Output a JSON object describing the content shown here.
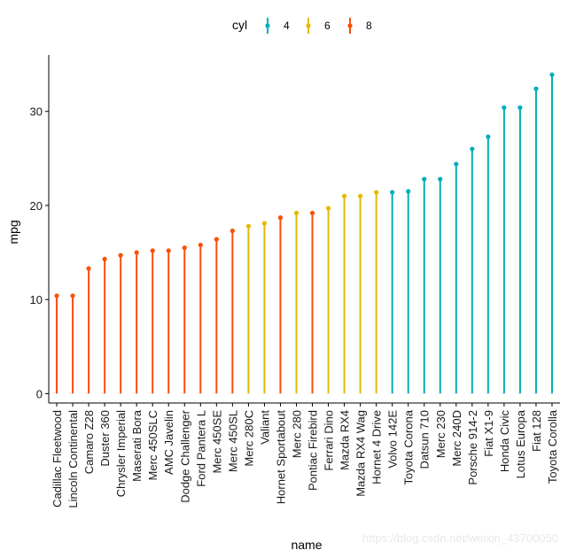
{
  "chart_data": {
    "type": "lollipop",
    "xlabel": "name",
    "ylabel": "mpg",
    "ylim": [
      -1,
      36
    ],
    "yticks": [
      0,
      10,
      20,
      30
    ],
    "legend": {
      "title": "cyl",
      "position": "top",
      "entries": [
        {
          "label": "4",
          "color": "#00AFBB"
        },
        {
          "label": "6",
          "color": "#E7B800"
        },
        {
          "label": "8",
          "color": "#FC4E07"
        }
      ]
    },
    "points": [
      {
        "name": "Cadillac Fleetwood",
        "mpg": 10.4,
        "cyl": "8"
      },
      {
        "name": "Lincoln Continental",
        "mpg": 10.4,
        "cyl": "8"
      },
      {
        "name": "Camaro Z28",
        "mpg": 13.3,
        "cyl": "8"
      },
      {
        "name": "Duster 360",
        "mpg": 14.3,
        "cyl": "8"
      },
      {
        "name": "Chrysler Imperial",
        "mpg": 14.7,
        "cyl": "8"
      },
      {
        "name": "Maserati Bora",
        "mpg": 15.0,
        "cyl": "8"
      },
      {
        "name": "Merc 450SLC",
        "mpg": 15.2,
        "cyl": "8"
      },
      {
        "name": "AMC Javelin",
        "mpg": 15.2,
        "cyl": "8"
      },
      {
        "name": "Dodge Challenger",
        "mpg": 15.5,
        "cyl": "8"
      },
      {
        "name": "Ford Pantera L",
        "mpg": 15.8,
        "cyl": "8"
      },
      {
        "name": "Merc 450SE",
        "mpg": 16.4,
        "cyl": "8"
      },
      {
        "name": "Merc 450SL",
        "mpg": 17.3,
        "cyl": "8"
      },
      {
        "name": "Merc 280C",
        "mpg": 17.8,
        "cyl": "6"
      },
      {
        "name": "Valiant",
        "mpg": 18.1,
        "cyl": "6"
      },
      {
        "name": "Hornet Sportabout",
        "mpg": 18.7,
        "cyl": "8"
      },
      {
        "name": "Merc 280",
        "mpg": 19.2,
        "cyl": "6"
      },
      {
        "name": "Pontiac Firebird",
        "mpg": 19.2,
        "cyl": "8"
      },
      {
        "name": "Ferrari Dino",
        "mpg": 19.7,
        "cyl": "6"
      },
      {
        "name": "Mazda RX4",
        "mpg": 21.0,
        "cyl": "6"
      },
      {
        "name": "Mazda RX4 Wag",
        "mpg": 21.0,
        "cyl": "6"
      },
      {
        "name": "Hornet 4 Drive",
        "mpg": 21.4,
        "cyl": "6"
      },
      {
        "name": "Volvo 142E",
        "mpg": 21.4,
        "cyl": "4"
      },
      {
        "name": "Toyota Corona",
        "mpg": 21.5,
        "cyl": "4"
      },
      {
        "name": "Datsun 710",
        "mpg": 22.8,
        "cyl": "4"
      },
      {
        "name": "Merc 230",
        "mpg": 22.8,
        "cyl": "4"
      },
      {
        "name": "Merc 240D",
        "mpg": 24.4,
        "cyl": "4"
      },
      {
        "name": "Porsche 914-2",
        "mpg": 26.0,
        "cyl": "4"
      },
      {
        "name": "Fiat X1-9",
        "mpg": 27.3,
        "cyl": "4"
      },
      {
        "name": "Honda Civic",
        "mpg": 30.4,
        "cyl": "4"
      },
      {
        "name": "Lotus Europa",
        "mpg": 30.4,
        "cyl": "4"
      },
      {
        "name": "Fiat 128",
        "mpg": 32.4,
        "cyl": "4"
      },
      {
        "name": "Toyota Corolla",
        "mpg": 33.9,
        "cyl": "4"
      }
    ]
  },
  "watermark": "https://blog.csdn.net/weixin_43700050"
}
